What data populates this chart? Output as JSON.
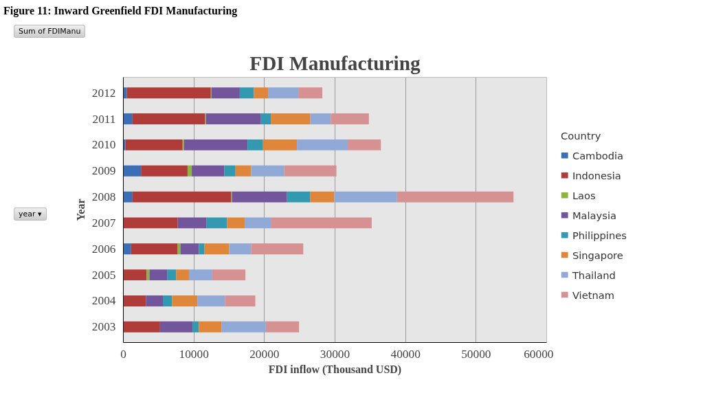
{
  "chart_data": {
    "type": "bar",
    "orientation": "horizontal",
    "stacked": true,
    "title": "FDI Manufacturing",
    "xlabel": "FDI inflow (Thousand USD)",
    "ylabel": "Year",
    "legend_title": "Country",
    "legend": "right",
    "grid": "x",
    "annotations": [
      "Figure 11: Inward Greenfield FDI Manufacturing",
      "Sum of FDIManu",
      "year ▾"
    ],
    "categories": [
      "2012",
      "2011",
      "2010",
      "2009",
      "2008",
      "2007",
      "2006",
      "2005",
      "2004",
      "2003"
    ],
    "xlim": [
      0,
      60000
    ],
    "xticks": [
      0,
      10000,
      20000,
      30000,
      40000,
      50000,
      60000
    ],
    "series": [
      {
        "name": "Cambodia",
        "color": "#3a6fb5",
        "values": [
          500,
          1300,
          300,
          2500,
          1300,
          0,
          1100,
          0,
          0,
          0
        ]
      },
      {
        "name": "Indonesia",
        "color": "#b03c3a",
        "values": [
          11900,
          10300,
          8100,
          6600,
          14000,
          7700,
          6600,
          3300,
          3200,
          5200
        ]
      },
      {
        "name": "Laos",
        "color": "#8db443",
        "values": [
          100,
          100,
          200,
          600,
          100,
          0,
          400,
          400,
          0,
          0
        ]
      },
      {
        "name": "Malaysia",
        "color": "#72559a",
        "values": [
          4000,
          7800,
          9000,
          4600,
          7800,
          4100,
          2600,
          2500,
          2400,
          4600
        ]
      },
      {
        "name": "Philippines",
        "color": "#3399b0",
        "values": [
          2000,
          1400,
          2200,
          1600,
          3300,
          2900,
          800,
          1300,
          1300,
          900
        ]
      },
      {
        "name": "Singapore",
        "color": "#e0863a",
        "values": [
          2000,
          5600,
          4800,
          2200,
          3400,
          2500,
          3500,
          1800,
          3600,
          3200
        ]
      },
      {
        "name": "Thailand",
        "color": "#91a9d6",
        "values": [
          4300,
          2900,
          7200,
          4700,
          8900,
          3700,
          3100,
          3300,
          3900,
          6300
        ]
      },
      {
        "name": "Vietnam",
        "color": "#d69192",
        "values": [
          3400,
          5400,
          4700,
          7400,
          16500,
          14300,
          7400,
          4700,
          4300,
          4700
        ]
      }
    ]
  }
}
